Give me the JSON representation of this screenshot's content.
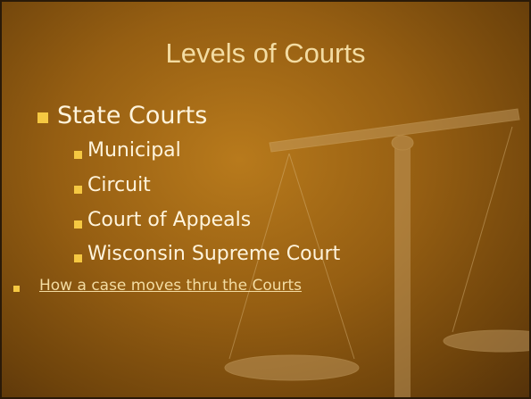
{
  "slide": {
    "title": "Levels of Courts",
    "bullets": [
      {
        "text": "State Courts",
        "children": [
          "Municipal",
          "Circuit",
          "Court of Appeals",
          "Wisconsin Supreme Court"
        ]
      },
      {
        "text": "How a case moves thru the Courts"
      }
    ]
  }
}
